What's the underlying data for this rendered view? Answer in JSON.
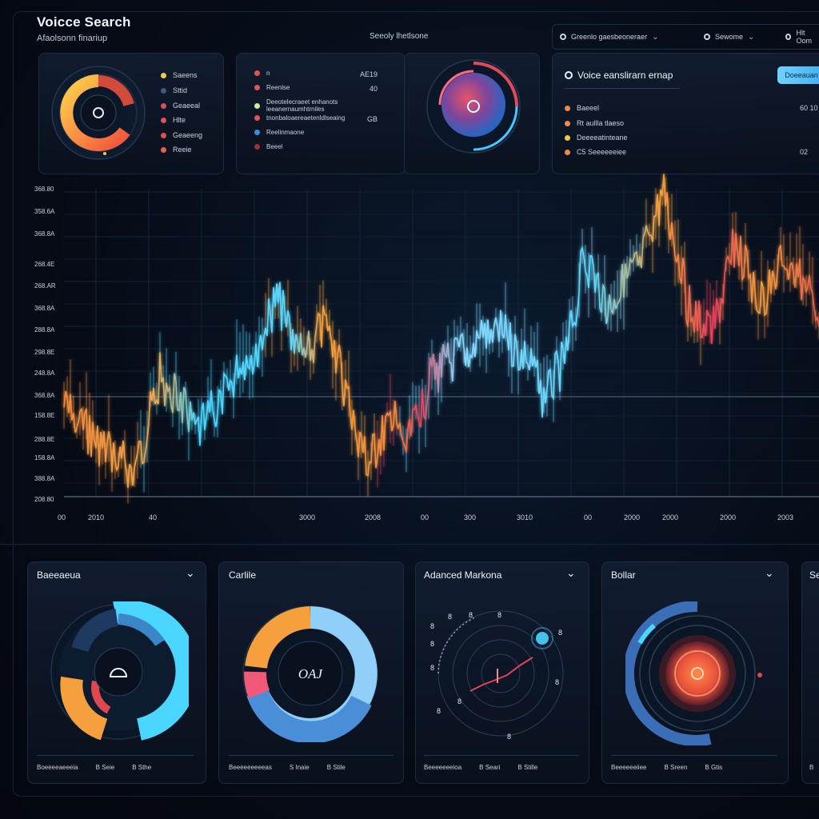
{
  "header": {
    "app_title": "Voicce Search",
    "app_subtitle": "Afaolsonn finariup",
    "center_title": "Seeoly lhetlsone"
  },
  "top_controls": [
    {
      "label": "Greenlo gaesbeoneraer"
    },
    {
      "label": "Sewome"
    },
    {
      "label": "Hlt Oom"
    }
  ],
  "donut_legend_card": {
    "items": [
      {
        "label": "Saeens",
        "color": "#f2c94c"
      },
      {
        "label": "Sttid",
        "color": "#3b5b85"
      },
      {
        "label": "Geaeeal",
        "color": "#d94f5c"
      },
      {
        "label": "Hlte",
        "color": "#e0505a"
      },
      {
        "label": "Geaeeng",
        "color": "#e0505a"
      },
      {
        "label": "Reeie",
        "color": "#e8604f"
      }
    ]
  },
  "list_card": {
    "items": [
      {
        "label": "n",
        "value": "AE19",
        "color": "#e8505a"
      },
      {
        "label": "Reenlse",
        "value": "40",
        "color": "#e8505a"
      },
      {
        "label": "Deeotelecraeet enhanots leeanernaumhtrniles",
        "value": "",
        "color": "#d7e6a0"
      },
      {
        "label": "tnonbaloaereaetenldlseaing",
        "value": "GB",
        "color": "#e8505a"
      },
      {
        "label": "Reelinmaone",
        "value": "",
        "color": "#3a8fd0"
      },
      {
        "label": "Beeel",
        "value": "",
        "color": "#a0303e"
      }
    ]
  },
  "voice_card": {
    "title": "Voice eanslirarn ernap",
    "button_label": "Doeeauan",
    "items": [
      {
        "label": "Baeeel",
        "value": "60 10",
        "color": "#f08a4b"
      },
      {
        "label": "Rt aullla tlaeso",
        "value": "",
        "color": "#f08a4b"
      },
      {
        "label": "Deeeeatinteane",
        "value": "",
        "color": "#f2c94c"
      },
      {
        "label": "C5 Seeeeeeiee",
        "value": "02",
        "color": "#f08a4b"
      }
    ]
  },
  "main_chart": {
    "y_labels": [
      "368.80",
      "358.6A",
      "368.8A",
      "268.4E",
      "268.AR",
      "368.8A",
      "288.8A",
      "298.8E",
      "248.8A",
      "368.8A",
      "158.8E",
      "288.8E",
      "158.8A",
      "388.8A",
      "208.80"
    ],
    "x_labels": [
      {
        "t": "00"
      },
      {
        "t": "2010"
      },
      {
        "t": "40"
      },
      {
        "t": "3000"
      },
      {
        "t": "2008"
      },
      {
        "t": "00"
      },
      {
        "t": "300"
      },
      {
        "t": "3010"
      },
      {
        "t": "00"
      },
      {
        "t": "2000"
      },
      {
        "t": "2000"
      },
      {
        "t": "2000"
      },
      {
        "t": "2003"
      }
    ]
  },
  "bottom_panels": [
    {
      "title": "Baeeaeua",
      "footer": [
        "Boeeeeaeeeia",
        "B Seie",
        "B Sthe"
      ]
    },
    {
      "title": "Carlile",
      "center": "OAJ",
      "footer": [
        "Beeeeeeeeeas",
        "S Inaie",
        "B Stile"
      ]
    },
    {
      "title": "Adanced Markona",
      "footer": [
        "Beeeeeeeioa",
        "B Seari",
        "B Stille"
      ]
    },
    {
      "title": "Bollar",
      "footer": [
        "Beeeeeeiiee",
        "B Sreen",
        "B Gtis"
      ]
    },
    {
      "title": "Se",
      "footer": [
        "B"
      ]
    }
  ],
  "colors": {
    "cyan": "#5ad8ff",
    "orange": "#f5a03c",
    "red": "#e8405a",
    "accent_blue": "#3fb0ef"
  }
}
